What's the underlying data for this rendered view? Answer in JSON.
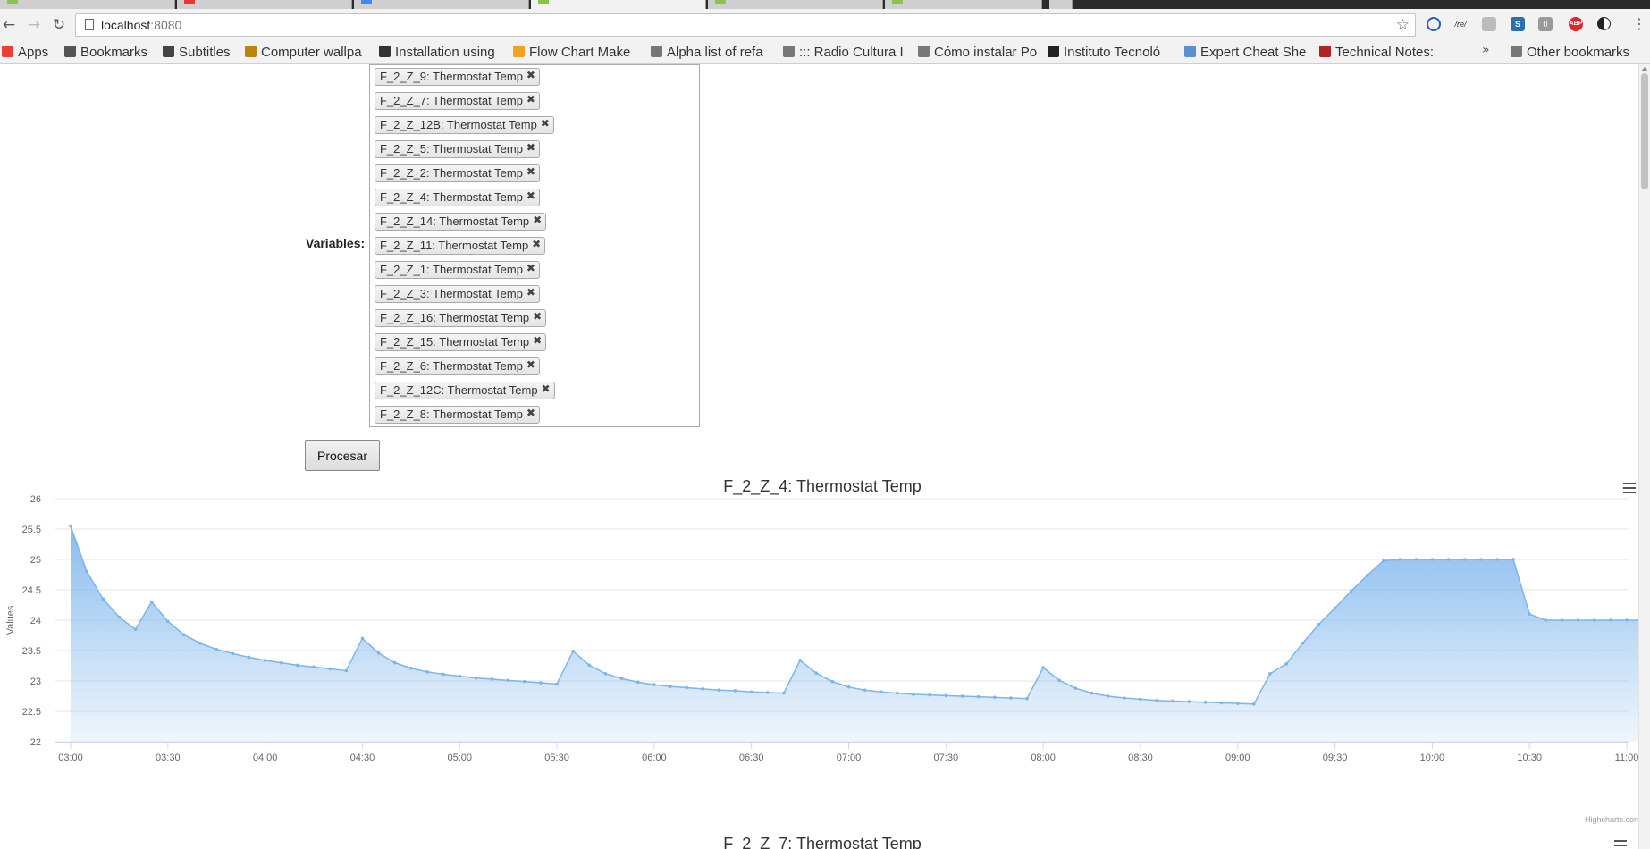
{
  "browser": {
    "url_host": "localhost",
    "url_port": ":8080",
    "bookmarks": [
      {
        "label": "Apps",
        "color": "#e94235"
      },
      {
        "label": "Bookmarks",
        "color": "#555555"
      },
      {
        "label": "Subtitles",
        "color": "#444444"
      },
      {
        "label": "Computer wallpa",
        "color": "#b8860b"
      },
      {
        "label": "Installation using",
        "color": "#333333"
      },
      {
        "label": "Flow Chart Make",
        "color": "#f4a020"
      },
      {
        "label": "Alpha list of refa",
        "color": "#777777"
      },
      {
        "label": "::: Radio Cultura I",
        "color": "#777777"
      },
      {
        "label": "Cómo instalar Po",
        "color": "#777777"
      },
      {
        "label": "Instituto Tecnoló",
        "color": "#222222"
      },
      {
        "label": "Expert Cheat She",
        "color": "#5b8fd1"
      },
      {
        "label": "Technical Notes:",
        "color": "#b22222"
      }
    ],
    "other_bookmarks": "Other bookmarks"
  },
  "form": {
    "variables_label": "Variables:",
    "selected_variables": [
      "F_2_Z_9: Thermostat Temp",
      "F_2_Z_7: Thermostat Temp",
      "F_2_Z_12B: Thermostat Temp",
      "F_2_Z_5: Thermostat Temp",
      "F_2_Z_2: Thermostat Temp",
      "F_2_Z_4: Thermostat Temp",
      "F_2_Z_14: Thermostat Temp",
      "F_2_Z_11: Thermostat Temp",
      "F_2_Z_1: Thermostat Temp",
      "F_2_Z_3: Thermostat Temp",
      "F_2_Z_16: Thermostat Temp",
      "F_2_Z_15: Thermostat Temp",
      "F_2_Z_6: Thermostat Temp",
      "F_2_Z_12C: Thermostat Temp",
      "F_2_Z_8: Thermostat Temp"
    ],
    "remove_glyph": "✖",
    "submit_label": "Procesar"
  },
  "chart_data": [
    {
      "type": "area",
      "title": "F_2_Z_4: Thermostat Temp",
      "ylabel": "Values",
      "xlabel": "",
      "ylim": [
        22,
        26
      ],
      "yticks": [
        22,
        22.5,
        23,
        23.5,
        24,
        24.5,
        25,
        25.5,
        26
      ],
      "xticks": [
        "03:00",
        "03:30",
        "04:00",
        "04:30",
        "05:00",
        "05:30",
        "06:00",
        "06:30",
        "07:00",
        "07:30",
        "08:00",
        "08:30",
        "09:00",
        "09:30",
        "10:00",
        "10:30",
        "11:00"
      ],
      "x_start": "03:00",
      "x_step_minutes": 5,
      "values": [
        25.55,
        24.8,
        24.35,
        24.05,
        23.85,
        24.3,
        23.98,
        23.76,
        23.62,
        23.52,
        23.45,
        23.39,
        23.34,
        23.3,
        23.26,
        23.23,
        23.2,
        23.17,
        23.7,
        23.46,
        23.3,
        23.21,
        23.15,
        23.11,
        23.08,
        23.05,
        23.03,
        23.01,
        22.99,
        22.97,
        22.95,
        23.49,
        23.26,
        23.12,
        23.04,
        22.98,
        22.94,
        22.91,
        22.89,
        22.87,
        22.85,
        22.84,
        22.82,
        22.81,
        22.8,
        23.34,
        23.13,
        22.99,
        22.9,
        22.85,
        22.82,
        22.8,
        22.78,
        22.77,
        22.76,
        22.75,
        22.74,
        22.73,
        22.72,
        22.71,
        23.22,
        23.01,
        22.88,
        22.8,
        22.75,
        22.72,
        22.7,
        22.68,
        22.67,
        22.66,
        22.65,
        22.64,
        22.63,
        22.62,
        23.12,
        23.28,
        23.62,
        23.93,
        24.2,
        24.48,
        24.74,
        24.98,
        25.0,
        25.0,
        25.0,
        25.0,
        25.0,
        25.0,
        25.0,
        25.0,
        24.1,
        24.0,
        24.0,
        24.0,
        24.0,
        24.0,
        24.0,
        24.0,
        24.0,
        24.0,
        24.0,
        24.0,
        24.0,
        24.0,
        24.02
      ],
      "grid": true,
      "color": "#7cb5ec",
      "credits": "Highcharts.com"
    },
    {
      "type": "area",
      "title": "F_2_Z_7: Thermostat Temp"
    }
  ]
}
